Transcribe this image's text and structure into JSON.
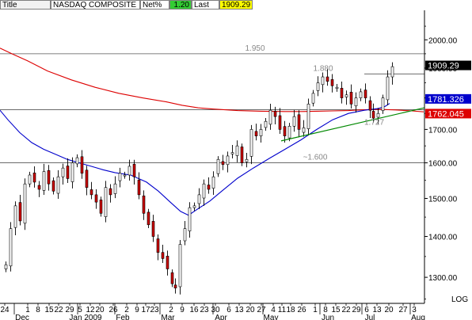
{
  "header": {
    "title_label": "Title",
    "symbol": "NASDAQ COMPOSITE",
    "net_label": "Net%",
    "net_value": "1.20",
    "last_label": "Last",
    "last_value": "1909.29",
    "net_color": "#33cc33",
    "last_color": "#ffff00"
  },
  "chart_data": {
    "type": "candlestick",
    "scale": "log",
    "ylim": [
      1240,
      2110
    ],
    "y_ticks": [
      {
        "value": 1300,
        "label": "1300.00"
      },
      {
        "value": 1400,
        "label": "1400.00"
      },
      {
        "value": 1500,
        "label": "1500.00"
      },
      {
        "value": 1600,
        "label": "1600.00"
      },
      {
        "value": 1700,
        "label": "1700.00"
      },
      {
        "value": 1800,
        "label": "1800.00"
      },
      {
        "value": 1900,
        "label": "1900.00"
      },
      {
        "value": 2000,
        "label": "2000.00"
      }
    ],
    "y_axis_tag": "LOG",
    "x_day_labels": [
      "24",
      "1",
      "8",
      "15",
      "22",
      "29",
      "5",
      "12",
      "20",
      "26",
      "2",
      "9",
      "17",
      "23",
      "2",
      "9",
      "16",
      "23",
      "30",
      "6",
      "13",
      "20",
      "27",
      "4",
      "11",
      "18",
      "26",
      "1",
      "8",
      "15",
      "22",
      "29",
      "6",
      "13",
      "20",
      "27",
      "3"
    ],
    "x_month_labels": [
      "Dec",
      "Jan 2009",
      "Feb",
      "Mar",
      "Apr",
      "May",
      "Jun",
      "Jul",
      "Aug"
    ],
    "series": [
      {
        "name": "",
        "color": "#dd0000",
        "values": [
          [
            0,
            1970
          ],
          [
            15,
            1950
          ],
          [
            35,
            1925
          ],
          [
            60,
            1890
          ],
          [
            90,
            1860
          ],
          [
            120,
            1835
          ],
          [
            150,
            1815
          ],
          [
            180,
            1800
          ],
          [
            210,
            1787
          ],
          [
            230,
            1776
          ],
          [
            250,
            1768
          ],
          [
            270,
            1764
          ],
          [
            300,
            1759
          ],
          [
            330,
            1757
          ],
          [
            360,
            1756
          ],
          [
            380,
            1756
          ],
          [
            400,
            1757
          ],
          [
            420,
            1758
          ],
          [
            440,
            1759
          ],
          [
            460,
            1762
          ],
          [
            480,
            1763
          ],
          [
            500,
            1761
          ],
          [
            520,
            1758
          ],
          [
            535,
            1755
          ]
        ]
      },
      {
        "name": "",
        "color": "#0000cc",
        "values": [
          [
            0,
            1760
          ],
          [
            10,
            1730
          ],
          [
            25,
            1690
          ],
          [
            40,
            1660
          ],
          [
            55,
            1640
          ],
          [
            70,
            1625
          ],
          [
            85,
            1610
          ],
          [
            100,
            1600
          ],
          [
            115,
            1590
          ],
          [
            130,
            1580
          ],
          [
            145,
            1572
          ],
          [
            165,
            1565
          ],
          [
            185,
            1545
          ],
          [
            200,
            1520
          ],
          [
            215,
            1490
          ],
          [
            228,
            1465
          ],
          [
            238,
            1455
          ],
          [
            250,
            1472
          ],
          [
            265,
            1493
          ],
          [
            280,
            1520
          ],
          [
            300,
            1556
          ],
          [
            320,
            1585
          ],
          [
            340,
            1613
          ],
          [
            360,
            1640
          ],
          [
            380,
            1668
          ],
          [
            400,
            1700
          ],
          [
            420,
            1730
          ],
          [
            440,
            1750
          ],
          [
            460,
            1760
          ],
          [
            478,
            1766
          ],
          [
            486,
            1772
          ],
          [
            492,
            1782
          ]
        ]
      }
    ],
    "trend_line": {
      "color": "#008800",
      "from": [
        355,
        1665
      ],
      "to": [
        536,
        1768
      ]
    },
    "horizontal_lines": [
      {
        "value": 1950,
        "label": "1.950"
      },
      {
        "value": 1880,
        "label": "1.880"
      },
      {
        "value": 1762,
        "label": ""
      },
      {
        "value": 1600,
        "label": "~1.600"
      }
    ],
    "annotations": [
      {
        "text": "1.727",
        "x": 460,
        "y": 1722
      }
    ],
    "price_tags": [
      {
        "label": "1909.29",
        "value": 1909.29,
        "bg": "#000000",
        "fg": "#ffffff"
      },
      {
        "label": "1781.326",
        "value": 1781.326,
        "bg": "#0000cc",
        "fg": "#ffffff"
      },
      {
        "label": "1762.045",
        "value": 1762.045,
        "bg": "#dd0000",
        "fg": "#ffffff"
      }
    ],
    "candle_up_color": "#ffffff",
    "candle_down_color": "#cc0000",
    "grid": false
  }
}
